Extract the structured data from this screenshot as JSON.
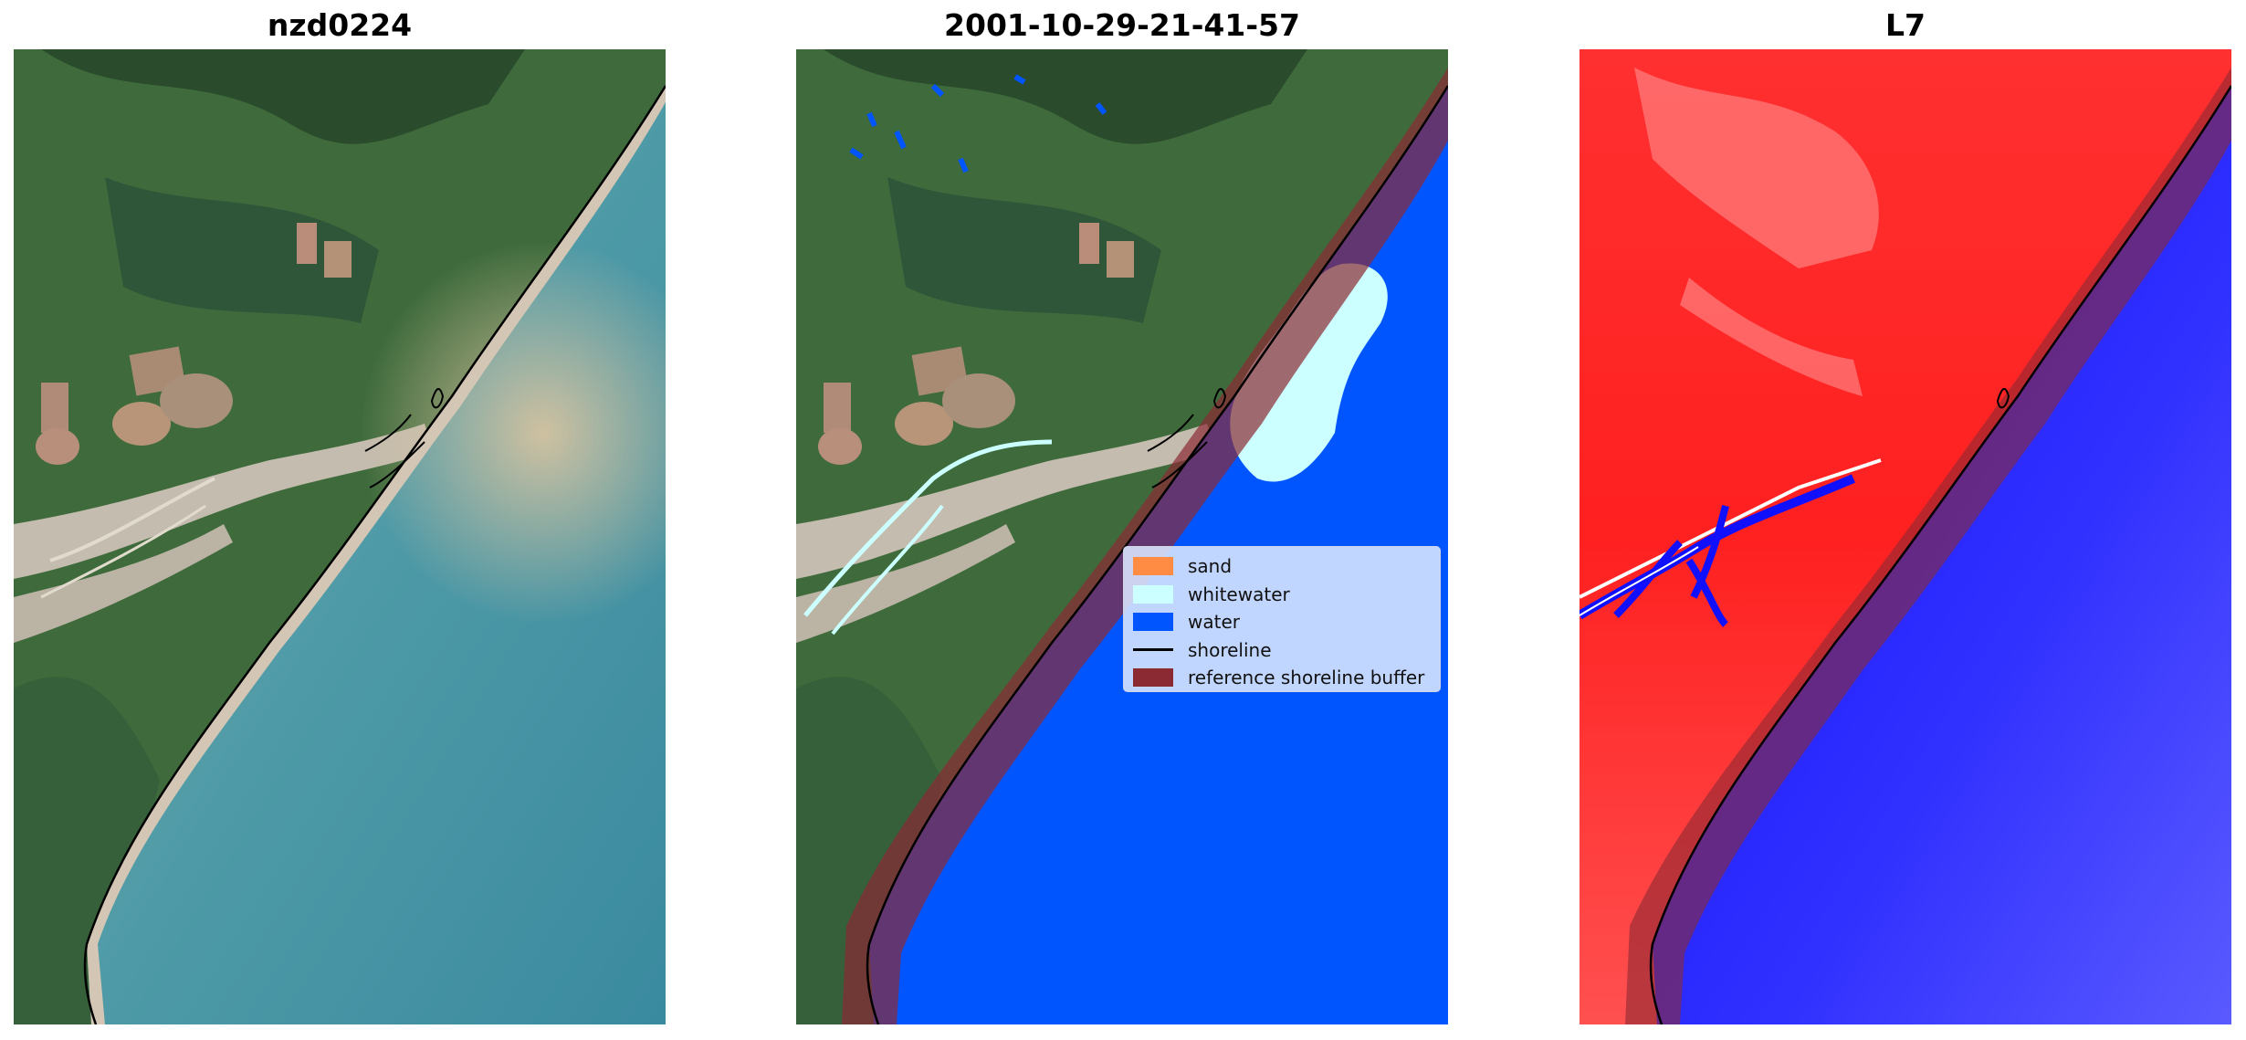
{
  "panels": [
    {
      "title": "nzd0224"
    },
    {
      "title": "2001-10-29-21-41-57"
    },
    {
      "title": "L7"
    }
  ],
  "legend": {
    "items": [
      {
        "label": "sand",
        "color": "#ff8c42"
      },
      {
        "label": "whitewater",
        "color": "#ccffff"
      },
      {
        "label": "water",
        "color": "#0055ff"
      },
      {
        "label": "shoreline",
        "color": "#000000"
      },
      {
        "label": "reference shoreline buffer",
        "color": "#8b2a33"
      }
    ]
  }
}
